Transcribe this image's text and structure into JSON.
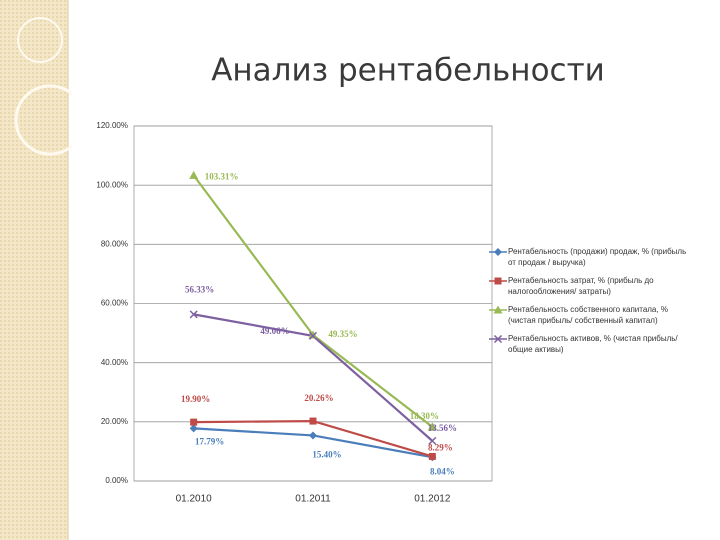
{
  "chart_data": {
    "type": "line",
    "title": "Анализ рентабельности",
    "categories": [
      "01.2010",
      "01.2011",
      "01.2012"
    ],
    "ylim": [
      0,
      120
    ],
    "yticks": [
      {
        "value": 0,
        "label": "0.00%"
      },
      {
        "value": 20,
        "label": "20.00%"
      },
      {
        "value": 40,
        "label": "40.00%"
      },
      {
        "value": 60,
        "label": "60.00%"
      },
      {
        "value": 80,
        "label": "80.00%"
      },
      {
        "value": 100,
        "label": "100.00%"
      },
      {
        "value": 120,
        "label": "120.00%"
      }
    ],
    "grid": true,
    "legend": "right",
    "series": [
      {
        "name": "Рентабельность (продажи) продаж, % (прибыль от продаж / выручка)",
        "color": "#4a7ebb",
        "marker": "diamond",
        "values": [
          17.79,
          15.4,
          8.04
        ],
        "value_labels": [
          "17.79%",
          "15.40%",
          "8.04%"
        ]
      },
      {
        "name": "Рентабельность затрат, % (прибыль до налогообложения/ затраты)",
        "color": "#be4b48",
        "marker": "square",
        "values": [
          19.9,
          20.26,
          8.29
        ],
        "value_labels": [
          "19.90%",
          "20.26%",
          "8.29%"
        ]
      },
      {
        "name": "Рентабельность собственного капитала, % (чистая прибыль/ собственный капитал)",
        "color": "#98b954",
        "marker": "triangle",
        "values": [
          103.31,
          49.35,
          18.3
        ],
        "value_labels": [
          "103.31%",
          "49.35%",
          "18.30%"
        ]
      },
      {
        "name": "Рентабельность активов, % (чистая прибыль/ общие активы)",
        "color": "#7d60a0",
        "marker": "x",
        "values": [
          56.33,
          49.06,
          13.56
        ],
        "value_labels": [
          "56.33%",
          "49.06%",
          "13.56%"
        ]
      }
    ]
  }
}
